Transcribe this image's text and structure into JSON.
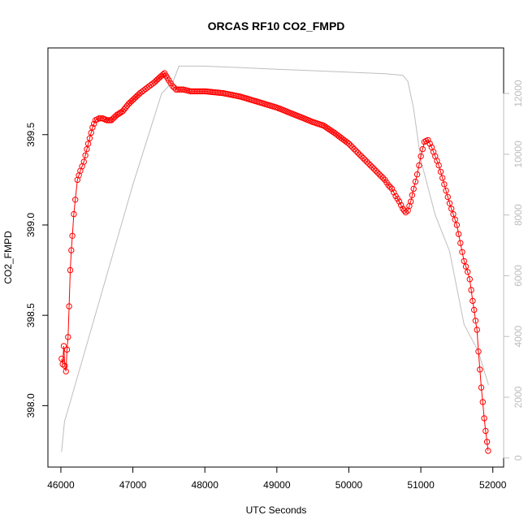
{
  "chart_data": {
    "type": "scatter",
    "title": "ORCAS RF10 CO2_FMPD",
    "xlabel": "UTC Seconds",
    "ylabel": "CO2_FMPD",
    "xlim": [
      45820,
      52150
    ],
    "ylim": [
      397.66,
      399.98
    ],
    "y2lim": [
      -300,
      13500
    ],
    "x_ticks": [
      46000,
      47000,
      48000,
      49000,
      50000,
      51000,
      52000
    ],
    "y_ticks": [
      398.0,
      398.5,
      399.0,
      399.5
    ],
    "y2_ticks": [
      0,
      2000,
      4000,
      6000,
      8000,
      10000,
      12000
    ],
    "grid": false,
    "colors": {
      "primary": "#ff0000",
      "secondary": "#bebebe",
      "frame": "#000000",
      "right_axis": "#bdbdbd"
    },
    "series": [
      {
        "axis": "left",
        "style": "points-connected",
        "points": [
          [
            46010,
            398.26
          ],
          [
            46025,
            398.23
          ],
          [
            46040,
            398.33
          ],
          [
            46055,
            398.22
          ],
          [
            46070,
            398.19
          ],
          [
            46085,
            398.31
          ],
          [
            46100,
            398.38
          ],
          [
            46115,
            398.55
          ],
          [
            46130,
            398.75
          ],
          [
            46145,
            398.86
          ],
          [
            46160,
            398.94
          ],
          [
            46180,
            399.06
          ],
          [
            46200,
            399.14
          ],
          [
            46230,
            399.25
          ],
          [
            46270,
            399.3
          ],
          [
            46320,
            399.35
          ],
          [
            46360,
            399.42
          ],
          [
            46400,
            399.48
          ],
          [
            46440,
            399.54
          ],
          [
            46480,
            399.58
          ],
          [
            46530,
            399.59
          ],
          [
            46580,
            399.59
          ],
          [
            46640,
            399.58
          ],
          [
            46700,
            399.58
          ],
          [
            46780,
            399.61
          ],
          [
            46860,
            399.63
          ],
          [
            46940,
            399.67
          ],
          [
            47020,
            399.7
          ],
          [
            47100,
            399.73
          ],
          [
            47200,
            399.76
          ],
          [
            47300,
            399.79
          ],
          [
            47380,
            399.82
          ],
          [
            47440,
            399.84
          ],
          [
            47500,
            399.8
          ],
          [
            47550,
            399.77
          ],
          [
            47600,
            399.75
          ],
          [
            47700,
            399.75
          ],
          [
            47800,
            399.74
          ],
          [
            48000,
            399.74
          ],
          [
            48250,
            399.73
          ],
          [
            48500,
            399.71
          ],
          [
            48750,
            399.68
          ],
          [
            49000,
            399.65
          ],
          [
            49250,
            399.61
          ],
          [
            49500,
            399.57
          ],
          [
            49650,
            399.55
          ],
          [
            49800,
            399.51
          ],
          [
            50000,
            399.45
          ],
          [
            50100,
            399.41
          ],
          [
            50200,
            399.37
          ],
          [
            50300,
            399.33
          ],
          [
            50400,
            399.29
          ],
          [
            50500,
            399.25
          ],
          [
            50550,
            399.22
          ],
          [
            50600,
            399.2
          ],
          [
            50650,
            399.16
          ],
          [
            50700,
            399.13
          ],
          [
            50750,
            399.09
          ],
          [
            50790,
            399.07
          ],
          [
            50820,
            399.08
          ],
          [
            50860,
            399.13
          ],
          [
            50900,
            399.2
          ],
          [
            50950,
            399.28
          ],
          [
            51000,
            399.38
          ],
          [
            51050,
            399.46
          ],
          [
            51100,
            399.47
          ],
          [
            51150,
            399.43
          ],
          [
            51200,
            399.38
          ],
          [
            51250,
            399.33
          ],
          [
            51300,
            399.26
          ],
          [
            51350,
            399.19
          ],
          [
            51400,
            399.12
          ],
          [
            51450,
            399.06
          ],
          [
            51500,
            399.0
          ],
          [
            51550,
            398.9
          ],
          [
            51600,
            398.8
          ],
          [
            51650,
            398.74
          ],
          [
            51680,
            398.7
          ],
          [
            51700,
            398.64
          ],
          [
            51720,
            398.58
          ],
          [
            51740,
            398.53
          ],
          [
            51760,
            398.47
          ],
          [
            51780,
            398.42
          ],
          [
            51800,
            398.3
          ],
          [
            51820,
            398.2
          ],
          [
            51840,
            398.1
          ],
          [
            51860,
            398.02
          ],
          [
            51880,
            397.93
          ],
          [
            51900,
            397.86
          ],
          [
            51920,
            397.8
          ],
          [
            51935,
            397.75
          ]
        ]
      },
      {
        "axis": "right",
        "style": "line",
        "points": [
          [
            46010,
            200
          ],
          [
            46050,
            1200
          ],
          [
            46100,
            1600
          ],
          [
            47000,
            9000
          ],
          [
            47400,
            12000
          ],
          [
            47560,
            12400
          ],
          [
            47640,
            12900
          ],
          [
            48000,
            12900
          ],
          [
            48500,
            12850
          ],
          [
            49000,
            12800
          ],
          [
            49500,
            12750
          ],
          [
            50000,
            12700
          ],
          [
            50500,
            12650
          ],
          [
            50750,
            12600
          ],
          [
            50820,
            12400
          ],
          [
            50900,
            11500
          ],
          [
            51000,
            9800
          ],
          [
            51200,
            8000
          ],
          [
            51400,
            6800
          ],
          [
            51600,
            4400
          ],
          [
            51800,
            3500
          ],
          [
            51940,
            2400
          ]
        ]
      }
    ]
  }
}
